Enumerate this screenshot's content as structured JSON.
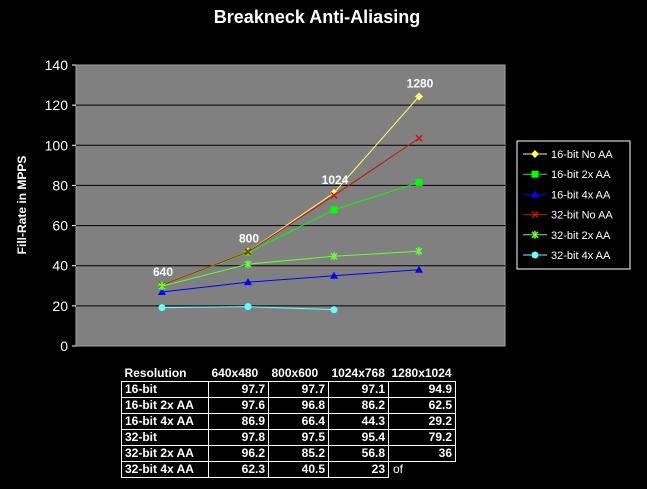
{
  "chart_data": {
    "type": "line",
    "title": "Breakneck Anti-Aliasing",
    "xlabel": "",
    "ylabel": "Fill-Rate in MPPS",
    "ylim": [
      0,
      140
    ],
    "yticks": [
      "0",
      "20",
      "40",
      "60",
      "80",
      "100",
      "120",
      "140"
    ],
    "grid": true,
    "legend_position": "right",
    "categories": [
      "640",
      "800",
      "1024",
      "1280"
    ],
    "point_labels": [
      "640",
      "800",
      "1024",
      "1280"
    ],
    "series": [
      {
        "name": "16-bit No AA",
        "color": "#ffff66",
        "marker": "diamond",
        "values": [
          30.2,
          47.0,
          76.3,
          124.3
        ]
      },
      {
        "name": "16-bit 2x AA",
        "color": "#00ff00",
        "marker": "square",
        "values": [
          30.2,
          46.5,
          67.9,
          81.5
        ]
      },
      {
        "name": "16-bit 4x AA",
        "color": "#0000ff",
        "marker": "triangle",
        "values": [
          26.9,
          31.8,
          35.0,
          38.0
        ]
      },
      {
        "name": "32-bit No AA",
        "color": "#cc1100",
        "marker": "x",
        "values": [
          30.3,
          46.9,
          75.0,
          103.5
        ]
      },
      {
        "name": "32-bit 2x AA",
        "color": "#66ff33",
        "marker": "star",
        "values": [
          29.8,
          40.8,
          44.7,
          47.2
        ]
      },
      {
        "name": "32-bit 4x AA",
        "color": "#66ffff",
        "marker": "circle",
        "values": [
          19.1,
          19.6,
          18.1,
          null
        ]
      }
    ]
  },
  "table": {
    "headers": [
      "Resolution",
      "640x480",
      "800x600",
      "1024x768",
      "1280x1024"
    ],
    "rows": [
      {
        "label": "16-bit",
        "values": [
          "97.7",
          "97.7",
          "97.1",
          "94.9"
        ]
      },
      {
        "label": "16-bit 2x AA",
        "values": [
          "97.6",
          "96.8",
          "86.2",
          "62.5"
        ]
      },
      {
        "label": "16-bit 4x AA",
        "values": [
          "86.9",
          "66.4",
          "44.3",
          "29.2"
        ]
      },
      {
        "label": "32-bit",
        "values": [
          "97.8",
          "97.5",
          "95.4",
          "79.2"
        ]
      },
      {
        "label": "32-bit 2x AA",
        "values": [
          "96.2",
          "85.2",
          "56.8",
          "36"
        ]
      },
      {
        "label": "32-bit 4x AA",
        "values": [
          "62.3",
          "40.5",
          "23",
          "of"
        ]
      }
    ]
  }
}
